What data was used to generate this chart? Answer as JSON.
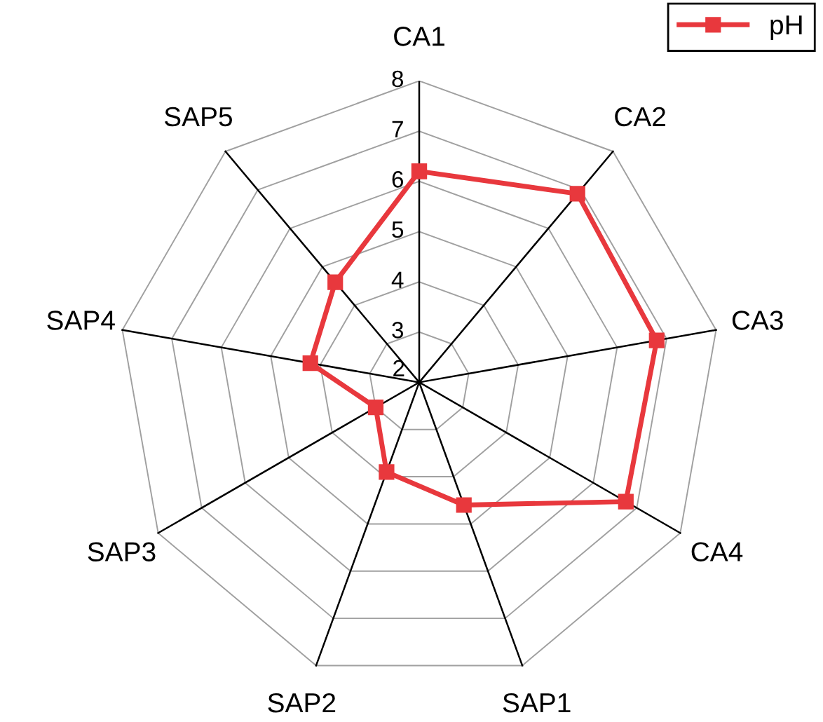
{
  "chart_data": {
    "type": "radar",
    "categories": [
      "CA1",
      "CA2",
      "CA3",
      "CA4",
      "SAP1",
      "SAP2",
      "SAP3",
      "SAP4",
      "SAP5"
    ],
    "series": [
      {
        "name": "pH",
        "color": "#e8383d",
        "values": [
          6.2,
          6.9,
          6.8,
          6.75,
          4.6,
          3.9,
          3.0,
          4.2,
          4.6
        ]
      }
    ],
    "ylim": [
      2,
      8
    ],
    "yticks": [
      2,
      3,
      4,
      5,
      6,
      7,
      8
    ],
    "marker": "square",
    "legend": "top right",
    "grid": true
  }
}
